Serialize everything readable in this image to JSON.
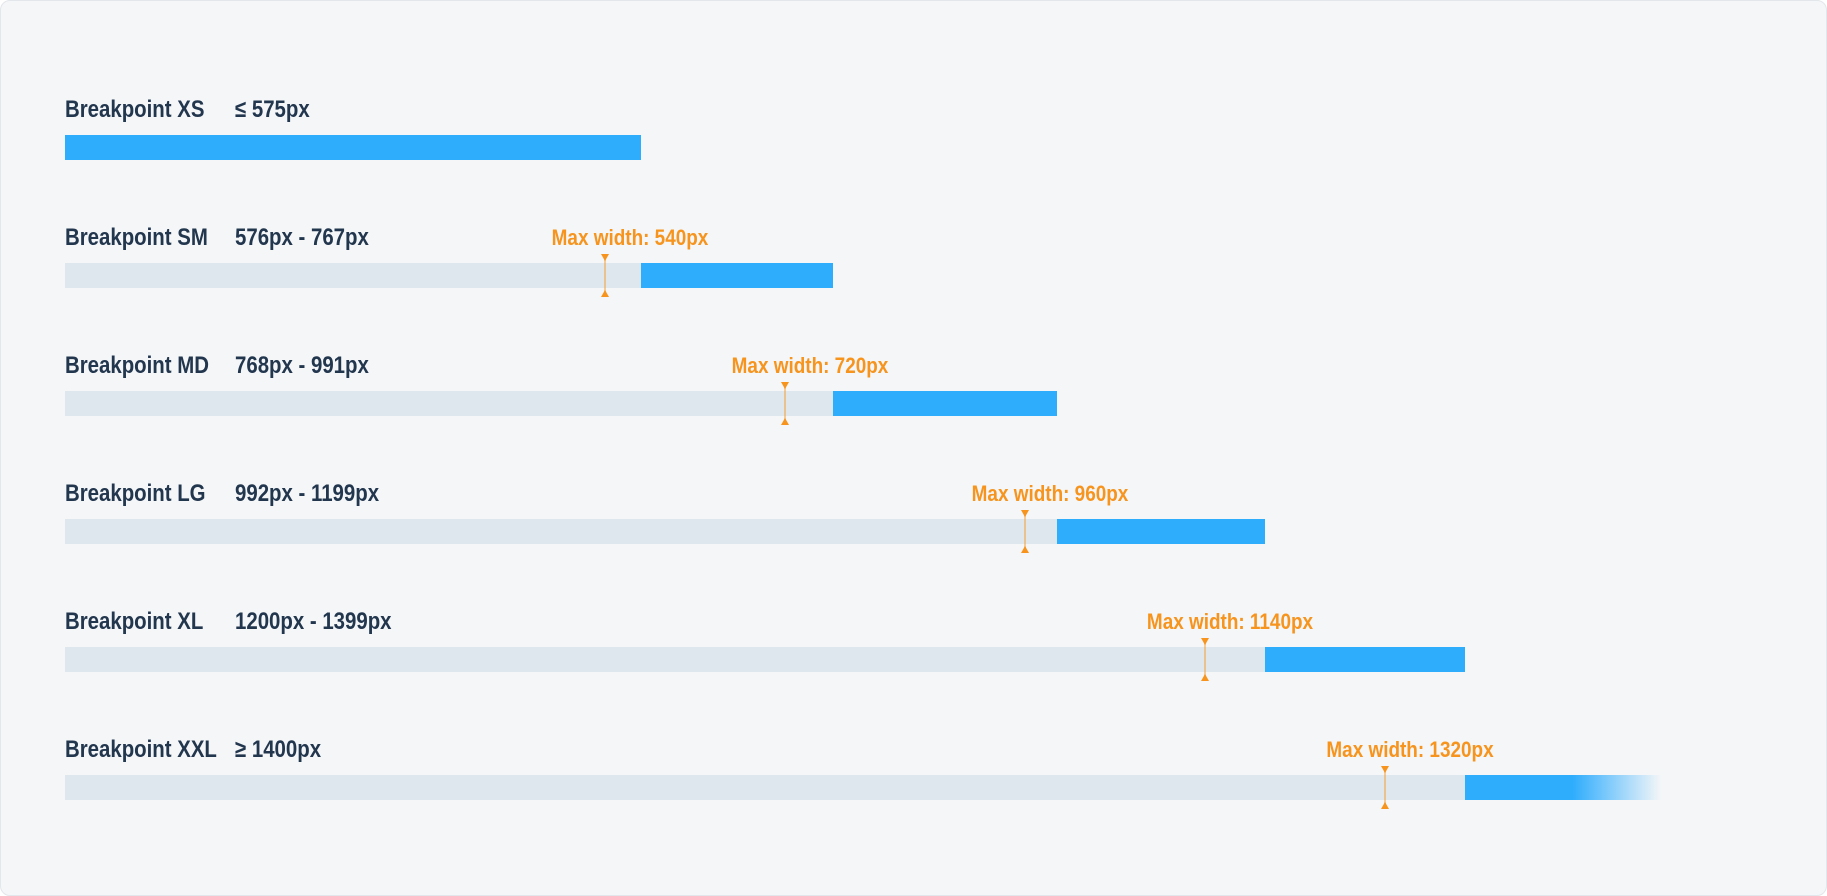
{
  "colors": {
    "background": "#f4f6f8",
    "panel_border": "#e3e6ea",
    "bar_blue": "#2fadfd",
    "bar_track": "#dee7ed",
    "label_navy": "#22364e",
    "accent_orange": "#f7941d"
  },
  "rows": [
    {
      "id": "xs",
      "name": "Breakpoint XS",
      "range_label": "≤ 575px",
      "range_min": 0,
      "range_max": 575,
      "max_width": null,
      "max_width_label": null,
      "open_ended": false
    },
    {
      "id": "sm",
      "name": "Breakpoint SM",
      "range_label": "576px - 767px",
      "range_min": 576,
      "range_max": 767,
      "max_width": 540,
      "max_width_label": "Max width: 540px",
      "open_ended": false
    },
    {
      "id": "md",
      "name": "Breakpoint MD",
      "range_label": "768px - 991px",
      "range_min": 768,
      "range_max": 991,
      "max_width": 720,
      "max_width_label": "Max width: 720px",
      "open_ended": false
    },
    {
      "id": "lg",
      "name": "Breakpoint LG",
      "range_label": "992px - 1199px",
      "range_min": 992,
      "range_max": 1199,
      "max_width": 960,
      "max_width_label": "Max width: 960px",
      "open_ended": false
    },
    {
      "id": "xl",
      "name": "Breakpoint XL",
      "range_label": "1200px - 1399px",
      "range_min": 1200,
      "range_max": 1399,
      "max_width": 1140,
      "max_width_label": "Max width: 1140px",
      "open_ended": false
    },
    {
      "id": "xxl",
      "name": "Breakpoint XXL",
      "range_label": "≥ 1400px",
      "range_min": 1400,
      "range_max": 1595,
      "max_width": 1320,
      "max_width_label": "Max width: 1320px",
      "open_ended": true
    }
  ]
}
